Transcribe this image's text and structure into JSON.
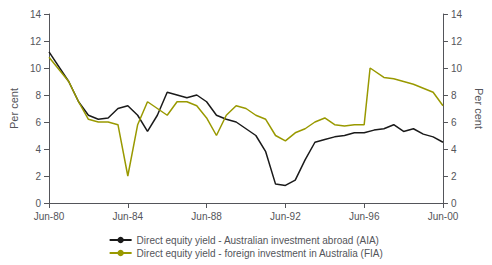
{
  "chart_data": {
    "type": "line",
    "ylabel": "Per cent",
    "y2label": "Per cent",
    "xlim": [
      1980,
      2000
    ],
    "xticks": [
      {
        "value": 1980,
        "label": "Jun-80"
      },
      {
        "value": 1984,
        "label": "Jun-84"
      },
      {
        "value": 1988,
        "label": "Jun-88"
      },
      {
        "value": 1992,
        "label": "Jun-92"
      },
      {
        "value": 1996,
        "label": "Jun-96"
      },
      {
        "value": 2000,
        "label": "Jun-00"
      }
    ],
    "ylim": [
      0,
      14
    ],
    "yticks": [
      0,
      2,
      4,
      6,
      8,
      10,
      12,
      14
    ],
    "y2lim": [
      0,
      14
    ],
    "y2ticks": [
      0,
      2,
      4,
      6,
      8,
      10,
      12,
      14
    ],
    "grid": false,
    "legend": "bottom",
    "series": [
      {
        "name": "Direct equity yield - Australian investment abroad (AIA)",
        "color": "#1a1a1a",
        "x": [
          1980.0,
          1981.0,
          1981.5,
          1982.0,
          1982.5,
          1983.0,
          1983.5,
          1984.0,
          1984.5,
          1985.0,
          1985.5,
          1986.0,
          1986.5,
          1987.0,
          1987.5,
          1988.0,
          1988.5,
          1989.0,
          1989.5,
          1990.0,
          1990.5,
          1991.0,
          1991.5,
          1992.0,
          1992.5,
          1993.0,
          1993.5,
          1994.0,
          1994.5,
          1995.0,
          1995.5,
          1996.0,
          1996.5,
          1997.0,
          1997.5,
          1998.0,
          1998.5,
          1999.0,
          1999.5,
          2000.0
        ],
        "values": [
          11.2,
          9.0,
          7.5,
          6.5,
          6.2,
          6.3,
          7.0,
          7.2,
          6.5,
          5.3,
          6.5,
          8.2,
          8.0,
          7.8,
          8.0,
          7.5,
          6.5,
          6.2,
          6.0,
          5.5,
          5.0,
          3.8,
          1.4,
          1.3,
          1.7,
          3.2,
          4.5,
          4.7,
          4.9,
          5.0,
          5.2,
          5.2,
          5.4,
          5.5,
          5.8,
          5.3,
          5.5,
          5.1,
          4.9,
          4.5
        ]
      },
      {
        "name": "Direct equity yield - foreign investment in Australia (FIA)",
        "color": "#999900",
        "x": [
          1980.0,
          1981.0,
          1981.5,
          1982.0,
          1982.5,
          1983.0,
          1983.5,
          1984.0,
          1984.5,
          1985.0,
          1985.5,
          1986.0,
          1986.5,
          1987.0,
          1987.5,
          1988.0,
          1988.5,
          1989.0,
          1989.5,
          1990.0,
          1990.5,
          1991.0,
          1991.5,
          1992.0,
          1992.5,
          1993.0,
          1993.5,
          1994.0,
          1994.5,
          1995.0,
          1995.5,
          1996.0,
          1996.3,
          1997.0,
          1997.5,
          1998.0,
          1998.5,
          1999.0,
          1999.5,
          2000.0
        ],
        "values": [
          10.8,
          9.0,
          7.5,
          6.2,
          6.0,
          6.0,
          5.8,
          2.0,
          5.8,
          7.5,
          7.0,
          6.5,
          7.5,
          7.5,
          7.2,
          6.3,
          5.0,
          6.5,
          7.2,
          7.0,
          6.5,
          6.2,
          5.0,
          4.6,
          5.2,
          5.5,
          6.0,
          6.3,
          5.8,
          5.7,
          5.8,
          5.8,
          10.0,
          9.3,
          9.2,
          9.0,
          8.8,
          8.5,
          8.2,
          7.2
        ]
      }
    ]
  }
}
